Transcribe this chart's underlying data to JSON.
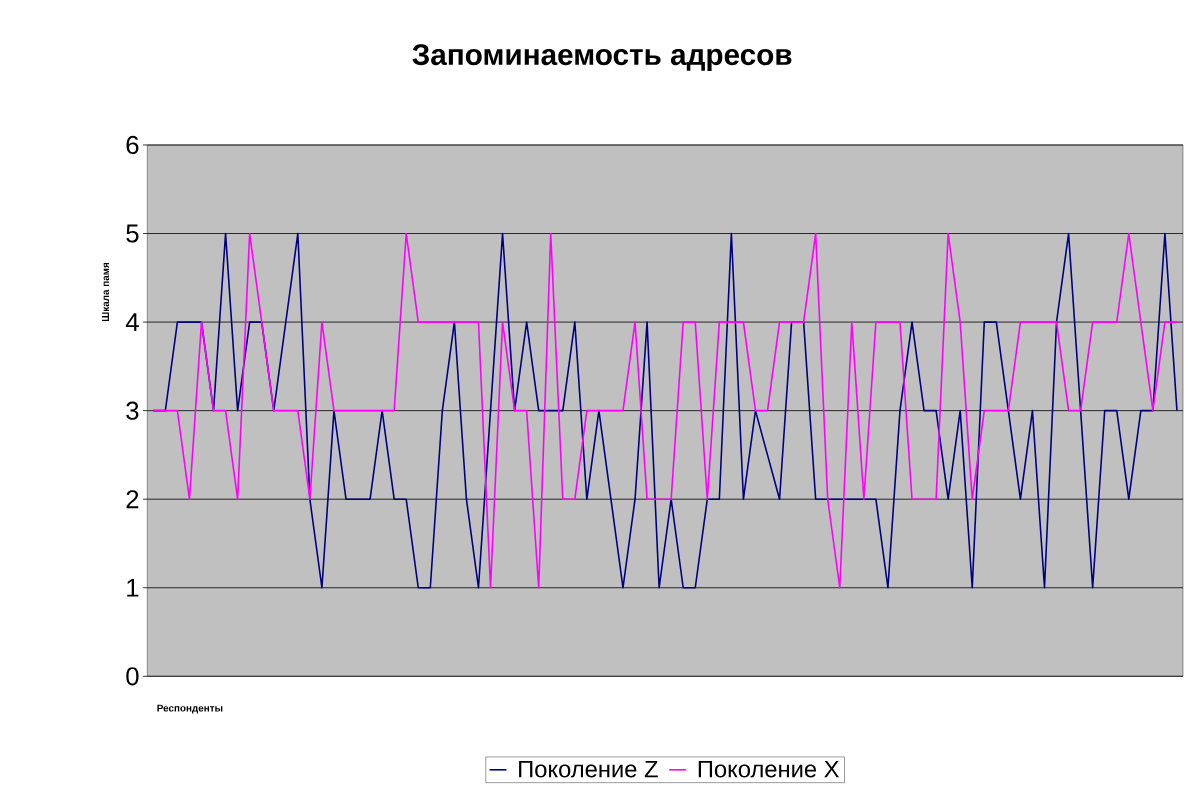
{
  "chart_data": {
    "type": "line",
    "title": "Запоминаемость адресов",
    "xlabel": "Респонденты",
    "ylabel": "Шкала памя",
    "categories": [
      null,
      null,
      null,
      null,
      null,
      null,
      null,
      null,
      null,
      null,
      null,
      null,
      null,
      null,
      null,
      null,
      null,
      null,
      null,
      null,
      null,
      null,
      null,
      null,
      null,
      null,
      null,
      null,
      null,
      null,
      null,
      null,
      null,
      null,
      null,
      null,
      null,
      null,
      null,
      null,
      null,
      null,
      null,
      null,
      null,
      null,
      null,
      null,
      null,
      null,
      null,
      null,
      null,
      null,
      null,
      null,
      null,
      null,
      null,
      null,
      null,
      null,
      null,
      null,
      null,
      null,
      null,
      null,
      null,
      null,
      null,
      null,
      null,
      null,
      null,
      null,
      null,
      null,
      null,
      null,
      null,
      null,
      null,
      null,
      null,
      null
    ],
    "series": [
      {
        "name": "Поколение Z",
        "color": "#000080",
        "values": [
          3,
          3,
          4,
          4,
          4,
          3,
          5,
          3,
          4,
          4,
          3,
          4,
          5,
          2,
          1,
          3,
          2,
          2,
          2,
          3,
          2,
          2,
          1,
          1,
          3,
          4,
          2,
          1,
          3,
          5,
          3,
          4,
          3,
          3,
          3,
          4,
          2,
          3,
          2,
          1,
          2,
          4,
          1,
          2,
          1,
          1,
          2,
          2,
          5,
          2,
          3,
          2.5,
          2,
          4,
          4,
          2,
          2,
          2,
          2,
          2,
          2,
          1,
          3,
          4,
          3,
          3,
          2,
          3,
          1,
          4,
          4,
          3,
          2,
          3,
          1,
          4,
          5,
          3,
          1,
          3,
          3,
          2,
          3,
          3,
          5,
          3
        ]
      },
      {
        "name": "Поколение X",
        "color": "#ff00ff",
        "values": [
          3,
          3,
          3,
          2,
          4,
          3,
          3,
          2,
          5,
          4,
          3,
          3,
          3,
          2,
          4,
          3,
          3,
          3,
          3,
          3,
          3,
          5,
          4,
          4,
          4,
          4,
          4,
          4,
          1,
          4,
          3,
          3,
          1,
          5,
          2,
          2,
          3,
          3,
          3,
          3,
          4,
          2,
          2,
          2,
          4,
          4,
          2,
          4,
          4,
          4,
          3,
          3,
          4,
          4,
          4,
          5,
          2,
          1,
          4,
          2,
          4,
          4,
          4,
          2,
          2,
          2,
          5,
          4,
          2,
          3,
          3,
          3,
          4,
          4,
          4,
          4,
          3,
          3,
          4,
          4,
          4,
          5,
          4,
          3,
          4,
          4
        ]
      }
    ],
    "ylim": [
      0,
      6
    ],
    "yticks": [
      0,
      1,
      2,
      3,
      4,
      5,
      6
    ],
    "grid": "y",
    "legend": "bottom",
    "tick_labels": "y"
  }
}
